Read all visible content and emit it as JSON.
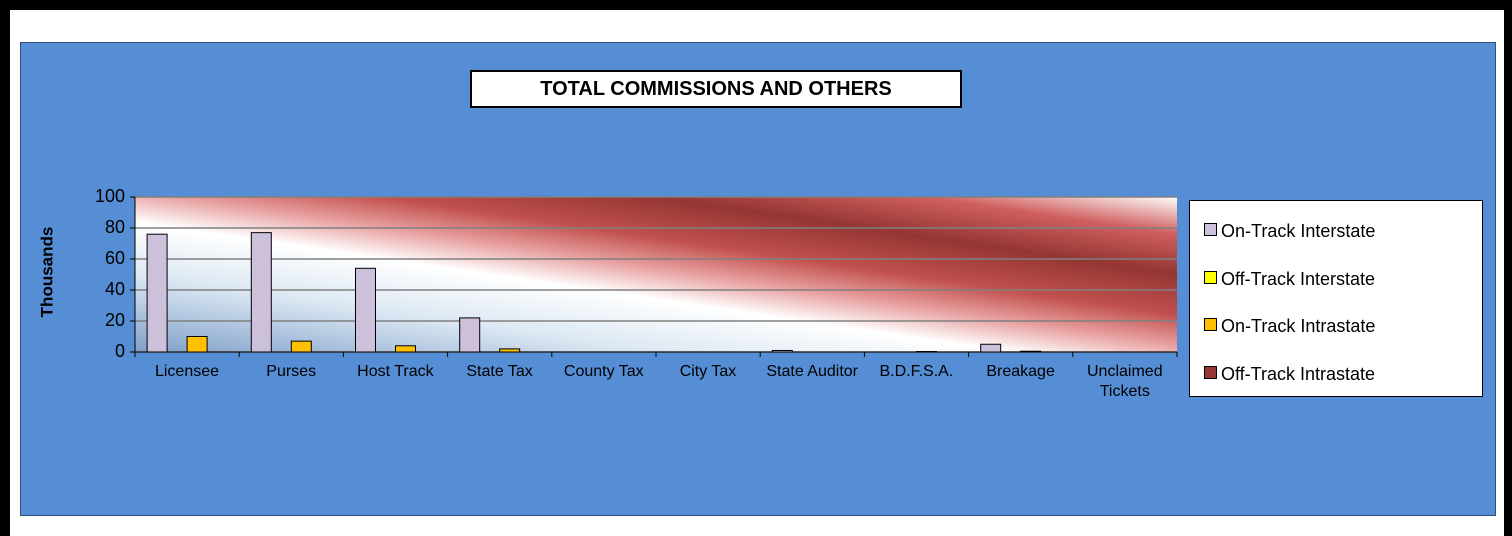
{
  "chart_data": {
    "type": "bar",
    "title": "TOTAL COMMISSIONS AND OTHERS",
    "y_label": "Thousands",
    "categories": [
      "Licensee",
      "Purses",
      "Host Track",
      "State Tax",
      "County Tax",
      "City Tax",
      "State Auditor",
      "B.D.F.S.A.",
      "Breakage",
      "Unclaimed Tickets"
    ],
    "series": [
      {
        "name": "On-Track Interstate",
        "color": "#ccc0da",
        "values": [
          76,
          77,
          54,
          22,
          0,
          0,
          1,
          0,
          5,
          0
        ]
      },
      {
        "name": "Off-Track Interstate",
        "color": "#ffff00",
        "values": [
          0,
          0,
          0,
          0,
          0,
          0,
          0,
          0,
          0,
          0
        ]
      },
      {
        "name": "On-Track Intrastate",
        "color": "#ffc000",
        "values": [
          10,
          7,
          4,
          2,
          0,
          0,
          0,
          0.3,
          0.5,
          0
        ]
      },
      {
        "name": "Off-Track Intrastate",
        "color": "#953735",
        "values": [
          0,
          0,
          0,
          0,
          0,
          0,
          0,
          0,
          0,
          0
        ]
      }
    ],
    "ylim": [
      0,
      100
    ],
    "yticks": [
      0,
      20,
      40,
      60,
      80,
      100
    ],
    "grid": true,
    "legend": "right"
  }
}
